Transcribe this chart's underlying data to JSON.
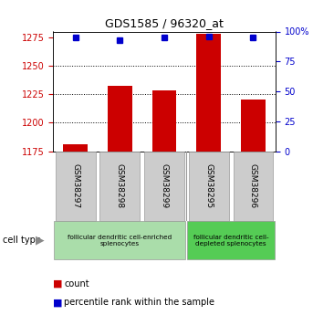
{
  "title": "GDS1585 / 96320_at",
  "samples": [
    "GSM38297",
    "GSM38298",
    "GSM38299",
    "GSM38295",
    "GSM38296"
  ],
  "counts": [
    1181,
    1232,
    1228,
    1278,
    1220
  ],
  "percentiles": [
    95,
    93,
    95,
    96,
    95
  ],
  "ylim_left": [
    1175,
    1280
  ],
  "ylim_right": [
    0,
    100
  ],
  "yticks_left": [
    1175,
    1200,
    1225,
    1250,
    1275
  ],
  "yticks_right": [
    0,
    25,
    50,
    75,
    100
  ],
  "bar_color": "#cc0000",
  "dot_color": "#0000cc",
  "bar_width": 0.55,
  "group_enriched_color": "#aaddaa",
  "group_depleted_color": "#55cc55",
  "group_enriched_label": "follicular dendritic cell-enriched\nsplenocytes",
  "group_depleted_label": "follicular dendritic cell-\ndepleted splenocytes",
  "left_axis_color": "#cc0000",
  "right_axis_color": "#0000cc",
  "sample_box_color": "#cccccc",
  "sample_box_edge": "#999999",
  "legend_bar_color": "#cc0000",
  "legend_dot_color": "#0000cc"
}
